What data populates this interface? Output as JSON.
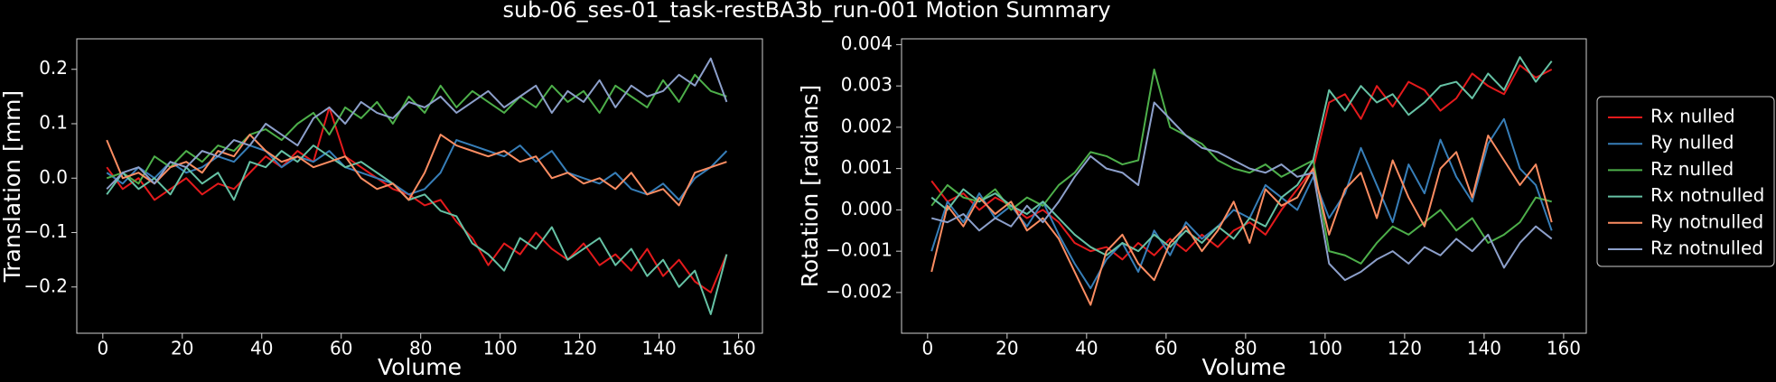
{
  "title": "sub-06_ses-01_task-restBA3b_run-001 Motion Summary",
  "chart_data": [
    {
      "type": "line",
      "xlabel": "Volume",
      "ylabel": "Translation [mm]",
      "x": [
        1,
        5,
        9,
        13,
        17,
        21,
        25,
        29,
        33,
        37,
        41,
        45,
        49,
        53,
        57,
        61,
        65,
        69,
        73,
        77,
        81,
        85,
        89,
        93,
        97,
        101,
        105,
        109,
        113,
        117,
        121,
        125,
        129,
        133,
        137,
        141,
        145,
        149,
        153,
        157
      ],
      "xlim": [
        -6.55,
        166.0
      ],
      "ylim": [
        -0.285,
        0.256
      ],
      "xticks": [
        0,
        20,
        40,
        60,
        80,
        100,
        120,
        140,
        160
      ],
      "yticks": [
        {
          "value": -0.2,
          "label": "−0.2"
        },
        {
          "value": -0.1,
          "label": "−0.1"
        },
        {
          "value": 0.0,
          "label": "0.0"
        },
        {
          "value": 0.1,
          "label": "0.1"
        },
        {
          "value": 0.2,
          "label": "0.2"
        }
      ],
      "series": [
        {
          "color": "#e41a1c",
          "values": [
            0.02,
            -0.02,
            0.0,
            -0.04,
            -0.02,
            0.0,
            -0.03,
            -0.01,
            -0.02,
            0.01,
            0.04,
            0.02,
            0.05,
            0.03,
            0.13,
            0.04,
            0.02,
            0.0,
            -0.02,
            -0.03,
            -0.05,
            -0.04,
            -0.08,
            -0.11,
            -0.16,
            -0.12,
            -0.14,
            -0.1,
            -0.13,
            -0.15,
            -0.12,
            -0.16,
            -0.14,
            -0.17,
            -0.13,
            -0.18,
            -0.15,
            -0.19,
            -0.21,
            -0.14
          ]
        },
        {
          "color": "#377eb8",
          "values": [
            0.01,
            -0.01,
            0.02,
            0.0,
            0.03,
            0.01,
            0.02,
            0.04,
            0.03,
            0.06,
            0.05,
            0.02,
            0.04,
            0.03,
            0.05,
            0.02,
            0.01,
            0.0,
            -0.01,
            -0.03,
            -0.02,
            0.01,
            0.07,
            0.06,
            0.05,
            0.04,
            0.06,
            0.03,
            0.05,
            0.01,
            0.0,
            -0.01,
            0.01,
            -0.02,
            -0.03,
            -0.01,
            -0.04,
            0.0,
            0.02,
            0.05
          ]
        },
        {
          "color": "#4daf4a",
          "values": [
            0.0,
            0.01,
            -0.01,
            0.04,
            0.02,
            0.05,
            0.03,
            0.06,
            0.05,
            0.08,
            0.09,
            0.07,
            0.1,
            0.12,
            0.08,
            0.13,
            0.11,
            0.14,
            0.1,
            0.15,
            0.12,
            0.17,
            0.13,
            0.16,
            0.14,
            0.12,
            0.15,
            0.13,
            0.17,
            0.14,
            0.16,
            0.12,
            0.17,
            0.15,
            0.13,
            0.18,
            0.14,
            0.19,
            0.16,
            0.15
          ]
        },
        {
          "color": "#66c2a5",
          "values": [
            -0.03,
            0.01,
            -0.02,
            0.0,
            -0.03,
            0.02,
            -0.01,
            0.01,
            -0.04,
            0.03,
            0.02,
            0.05,
            0.03,
            0.06,
            0.04,
            0.02,
            0.03,
            0.01,
            -0.01,
            -0.04,
            -0.03,
            -0.06,
            -0.07,
            -0.12,
            -0.14,
            -0.17,
            -0.11,
            -0.13,
            -0.09,
            -0.15,
            -0.13,
            -0.11,
            -0.16,
            -0.13,
            -0.18,
            -0.15,
            -0.2,
            -0.17,
            -0.25,
            -0.14
          ]
        },
        {
          "color": "#fc8d62",
          "values": [
            0.07,
            0.0,
            0.01,
            -0.01,
            0.02,
            0.03,
            0.01,
            0.05,
            0.04,
            0.08,
            0.05,
            0.03,
            0.04,
            0.02,
            0.03,
            0.04,
            0.0,
            -0.02,
            -0.01,
            -0.04,
            0.01,
            0.08,
            0.06,
            0.05,
            0.04,
            0.05,
            0.03,
            0.04,
            0.0,
            0.01,
            -0.01,
            0.0,
            -0.02,
            0.01,
            -0.03,
            -0.02,
            -0.05,
            0.01,
            0.02,
            0.03
          ]
        },
        {
          "color": "#8da0cb",
          "values": [
            -0.02,
            0.01,
            0.02,
            -0.01,
            0.03,
            0.02,
            0.05,
            0.04,
            0.07,
            0.06,
            0.1,
            0.08,
            0.06,
            0.11,
            0.13,
            0.1,
            0.14,
            0.12,
            0.11,
            0.14,
            0.13,
            0.15,
            0.12,
            0.14,
            0.16,
            0.13,
            0.15,
            0.17,
            0.12,
            0.16,
            0.14,
            0.18,
            0.13,
            0.17,
            0.15,
            0.16,
            0.19,
            0.17,
            0.22,
            0.14
          ]
        }
      ]
    },
    {
      "type": "line",
      "xlabel": "Volume",
      "ylabel": "Rotation [radians]",
      "legend": "right",
      "x": [
        1,
        5,
        9,
        13,
        17,
        21,
        25,
        29,
        33,
        37,
        41,
        45,
        49,
        53,
        57,
        61,
        65,
        69,
        73,
        77,
        81,
        85,
        89,
        93,
        97,
        101,
        105,
        109,
        113,
        117,
        121,
        125,
        129,
        133,
        137,
        141,
        145,
        149,
        153,
        157
      ],
      "xlim": [
        -6.55,
        165.7
      ],
      "ylim": [
        -0.002986,
        0.00414
      ],
      "xticks": [
        0,
        20,
        40,
        60,
        80,
        100,
        120,
        140,
        160
      ],
      "yticks": [
        {
          "value": -0.002,
          "label": "−0.002"
        },
        {
          "value": -0.001,
          "label": "−0.001"
        },
        {
          "value": 0.0,
          "label": "0.000"
        },
        {
          "value": 0.001,
          "label": "0.001"
        },
        {
          "value": 0.002,
          "label": "0.002"
        },
        {
          "value": 0.003,
          "label": "0.003"
        },
        {
          "value": 0.004,
          "label": "0.004"
        }
      ],
      "series": [
        {
          "name": "Rx nulled",
          "color": "#e41a1c",
          "values": [
            0.0007,
            0.0002,
            0.0004,
            0.0,
            0.0003,
            0.0001,
            -0.0002,
            0.0,
            -0.0003,
            -0.0008,
            -0.001,
            -0.0009,
            -0.0012,
            -0.0008,
            -0.0011,
            -0.0007,
            -0.001,
            -0.0006,
            -0.0009,
            -0.0005,
            -0.0003,
            -0.0006,
            0.0,
            0.0005,
            0.001,
            0.0026,
            0.0028,
            0.0022,
            0.003,
            0.0025,
            0.0031,
            0.0029,
            0.0024,
            0.0027,
            0.0033,
            0.003,
            0.0028,
            0.0035,
            0.0032,
            0.0034
          ]
        },
        {
          "name": "Ry nulled",
          "color": "#377eb8",
          "values": [
            -0.001,
            0.0002,
            -0.0003,
            0.0004,
            -0.0002,
            0.0001,
            -0.0004,
            0.0002,
            -0.0006,
            -0.0013,
            -0.0019,
            -0.0012,
            -0.0008,
            -0.0015,
            -0.0005,
            -0.0011,
            -0.0003,
            -0.0007,
            -0.0004,
            0.0,
            -0.0002,
            0.0006,
            0.0003,
            0.0,
            0.0008,
            -0.0002,
            0.0004,
            0.0015,
            0.0006,
            -0.0003,
            0.0011,
            0.0004,
            0.0017,
            0.0008,
            0.0002,
            0.0016,
            0.0022,
            0.001,
            0.0006,
            -0.0005
          ]
        },
        {
          "name": "Rz nulled",
          "color": "#4daf4a",
          "values": [
            0.0001,
            0.0006,
            0.0003,
            0.0002,
            0.0005,
            0.0,
            0.0003,
            0.0001,
            0.0006,
            0.0009,
            0.0014,
            0.0013,
            0.0011,
            0.0012,
            0.0034,
            0.002,
            0.0018,
            0.0016,
            0.0012,
            0.001,
            0.0009,
            0.0011,
            0.0008,
            0.001,
            0.0012,
            -0.001,
            -0.0011,
            -0.0013,
            -0.0008,
            -0.0004,
            -0.0006,
            -0.0003,
            0.0,
            -0.0005,
            -0.0002,
            -0.0008,
            -0.0006,
            -0.0003,
            0.0003,
            0.0002
          ]
        },
        {
          "name": "Rx notnulled",
          "color": "#66c2a5",
          "values": [
            0.0003,
            0.0,
            0.0005,
            0.0002,
            0.0004,
            0.0001,
            -0.0001,
            0.0002,
            -0.0002,
            -0.0006,
            -0.0009,
            -0.0011,
            -0.0008,
            -0.001,
            -0.0006,
            -0.0009,
            -0.0005,
            -0.0008,
            -0.0004,
            -0.0007,
            -0.0002,
            -0.0004,
            0.0003,
            0.0006,
            0.0012,
            0.0029,
            0.0024,
            0.003,
            0.0026,
            0.0028,
            0.0023,
            0.0026,
            0.003,
            0.0031,
            0.0027,
            0.0033,
            0.0029,
            0.0037,
            0.0031,
            0.0036
          ]
        },
        {
          "name": "Ry notnulled",
          "color": "#fc8d62",
          "values": [
            -0.0015,
            0.0001,
            -0.0004,
            0.0003,
            -0.0001,
            0.0002,
            -0.0005,
            -0.0002,
            -0.0007,
            -0.0015,
            -0.0023,
            -0.001,
            -0.0006,
            -0.0013,
            -0.0017,
            -0.0008,
            -0.0004,
            -0.001,
            -0.0005,
            0.0002,
            -0.0008,
            0.0005,
            0.0001,
            0.0003,
            0.001,
            -0.0006,
            0.0005,
            0.0009,
            -0.0002,
            0.0012,
            0.0003,
            -0.0004,
            0.001,
            0.0014,
            0.0003,
            0.0018,
            0.0012,
            0.0006,
            0.0011,
            -0.0003
          ]
        },
        {
          "name": "Rz notnulled",
          "color": "#8da0cb",
          "values": [
            -0.0002,
            -0.0003,
            -0.0001,
            -0.0005,
            -0.0002,
            -0.0004,
            0.0001,
            -0.0003,
            0.0002,
            0.0008,
            0.0013,
            0.001,
            0.0009,
            0.0006,
            0.0026,
            0.0022,
            0.0018,
            0.0015,
            0.0014,
            0.0012,
            0.001,
            0.0009,
            0.0011,
            0.0008,
            0.0009,
            -0.0013,
            -0.0017,
            -0.0015,
            -0.0012,
            -0.001,
            -0.0013,
            -0.0009,
            -0.0011,
            -0.0007,
            -0.001,
            -0.0006,
            -0.0014,
            -0.0008,
            -0.0004,
            -0.0007
          ]
        }
      ]
    }
  ]
}
